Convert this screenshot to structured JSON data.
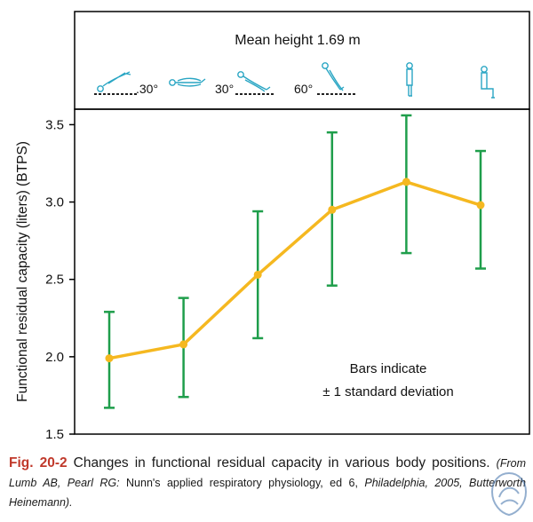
{
  "header": {
    "title": "Mean height 1.69 m",
    "angle_labels": {
      "head_down": ".30°",
      "head_up": "30°",
      "head_up_steep": "60°"
    },
    "figure_colors": {
      "posture_icon": "#2aa6c4",
      "baseline": "#222222"
    }
  },
  "chart_data": {
    "type": "line",
    "categories": [
      "30° head-down",
      "Supine",
      "30° head-up",
      "60° head-up",
      "Standing",
      "Sitting"
    ],
    "values": [
      1.99,
      2.08,
      2.53,
      2.95,
      3.13,
      2.98
    ],
    "error_bars": [
      {
        "low": 1.67,
        "high": 2.29
      },
      {
        "low": 1.74,
        "high": 2.38
      },
      {
        "low": 2.12,
        "high": 2.94
      },
      {
        "low": 2.46,
        "high": 3.45
      },
      {
        "low": 2.67,
        "high": 3.56
      },
      {
        "low": 2.57,
        "high": 3.33
      }
    ],
    "ylabel": "Functional residual capacity (liters) (BTPS)",
    "xlabel": "",
    "ylim": [
      1.5,
      3.6
    ],
    "yticks": [
      1.5,
      2.0,
      2.5,
      3.0,
      3.5
    ],
    "ytick_labels": [
      "1.5",
      "2.0",
      "2.5",
      "3.0",
      "3.5"
    ],
    "annotation": {
      "line1": "Bars indicate",
      "line2": "± 1 standard deviation"
    },
    "colors": {
      "line": "#f5b820",
      "error_bars": "#1f9e4b",
      "frame": "#000000"
    }
  },
  "caption": {
    "label": "Fig. 20-2",
    "text": "Changes in functional residual capacity in various body positions.",
    "source_prefix": "(From Lumb AB, Pearl RG:",
    "source_title": "Nunn's applied respiratory physiology, ed 6,",
    "source_suffix": "Philadelphia, 2005, Butterworth Heinemann)."
  }
}
